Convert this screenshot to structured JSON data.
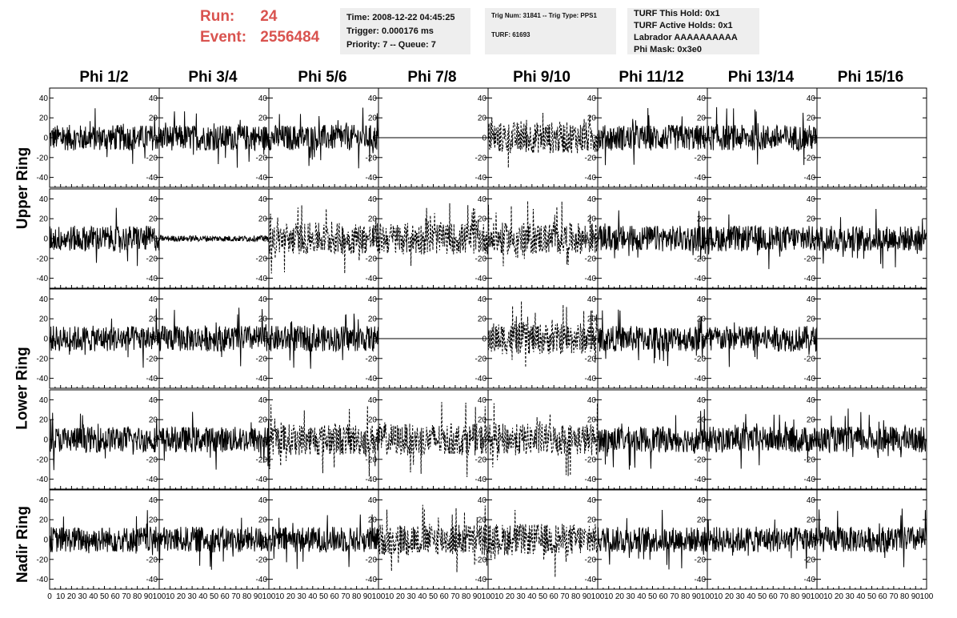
{
  "header": {
    "run_label": "Run:",
    "run_value": "24",
    "event_label": "Event:",
    "event_value": "2556484",
    "time": "Time: 2008-12-22 04:45:25",
    "trigger": "Trigger: 0.000176 ms",
    "priority": "Priority: 7 -- Queue: 7",
    "trig_num": "Trig Num: 31841 -- Trig Type: PPS1",
    "turf": "TURF: 61693",
    "turf_this_hold": "TURF This Hold: 0x1",
    "turf_active_holds": "TURF Active Holds: 0x1",
    "labrador": "Labrador AAAAAAAAAA",
    "phi_mask": "Phi Mask: 0x3e0",
    "accent_color": "#d9534f"
  },
  "columns": [
    "Phi 1/2",
    "Phi 3/4",
    "Phi 5/6",
    "Phi 7/8",
    "Phi 9/10",
    "Phi 11/12",
    "Phi 13/14",
    "Phi 15/16"
  ],
  "rows": [
    "Upper Ring",
    "Lower Ring",
    "Nadir Ring"
  ],
  "chart_data": {
    "type": "line",
    "x_ticks": [
      0,
      10,
      20,
      30,
      40,
      50,
      60,
      70,
      80,
      90,
      100
    ],
    "xlim": [
      0,
      100
    ],
    "y_ticks": [
      -40,
      -20,
      0,
      20,
      40
    ],
    "ylim": [
      -50,
      50
    ],
    "panel_rows": 5,
    "panel_cols": 8,
    "flat_panels": [
      [
        0,
        3
      ],
      [
        0,
        7
      ],
      [
        2,
        3
      ],
      [
        2,
        7
      ]
    ],
    "dashed_panels": [
      [
        0,
        4
      ],
      [
        1,
        2
      ],
      [
        1,
        3
      ],
      [
        1,
        4
      ],
      [
        2,
        4
      ],
      [
        3,
        2
      ],
      [
        3,
        3
      ],
      [
        3,
        4
      ],
      [
        4,
        3
      ],
      [
        4,
        4
      ]
    ],
    "small_panels": [
      [
        1,
        1
      ]
    ],
    "line_color": "#000000"
  }
}
